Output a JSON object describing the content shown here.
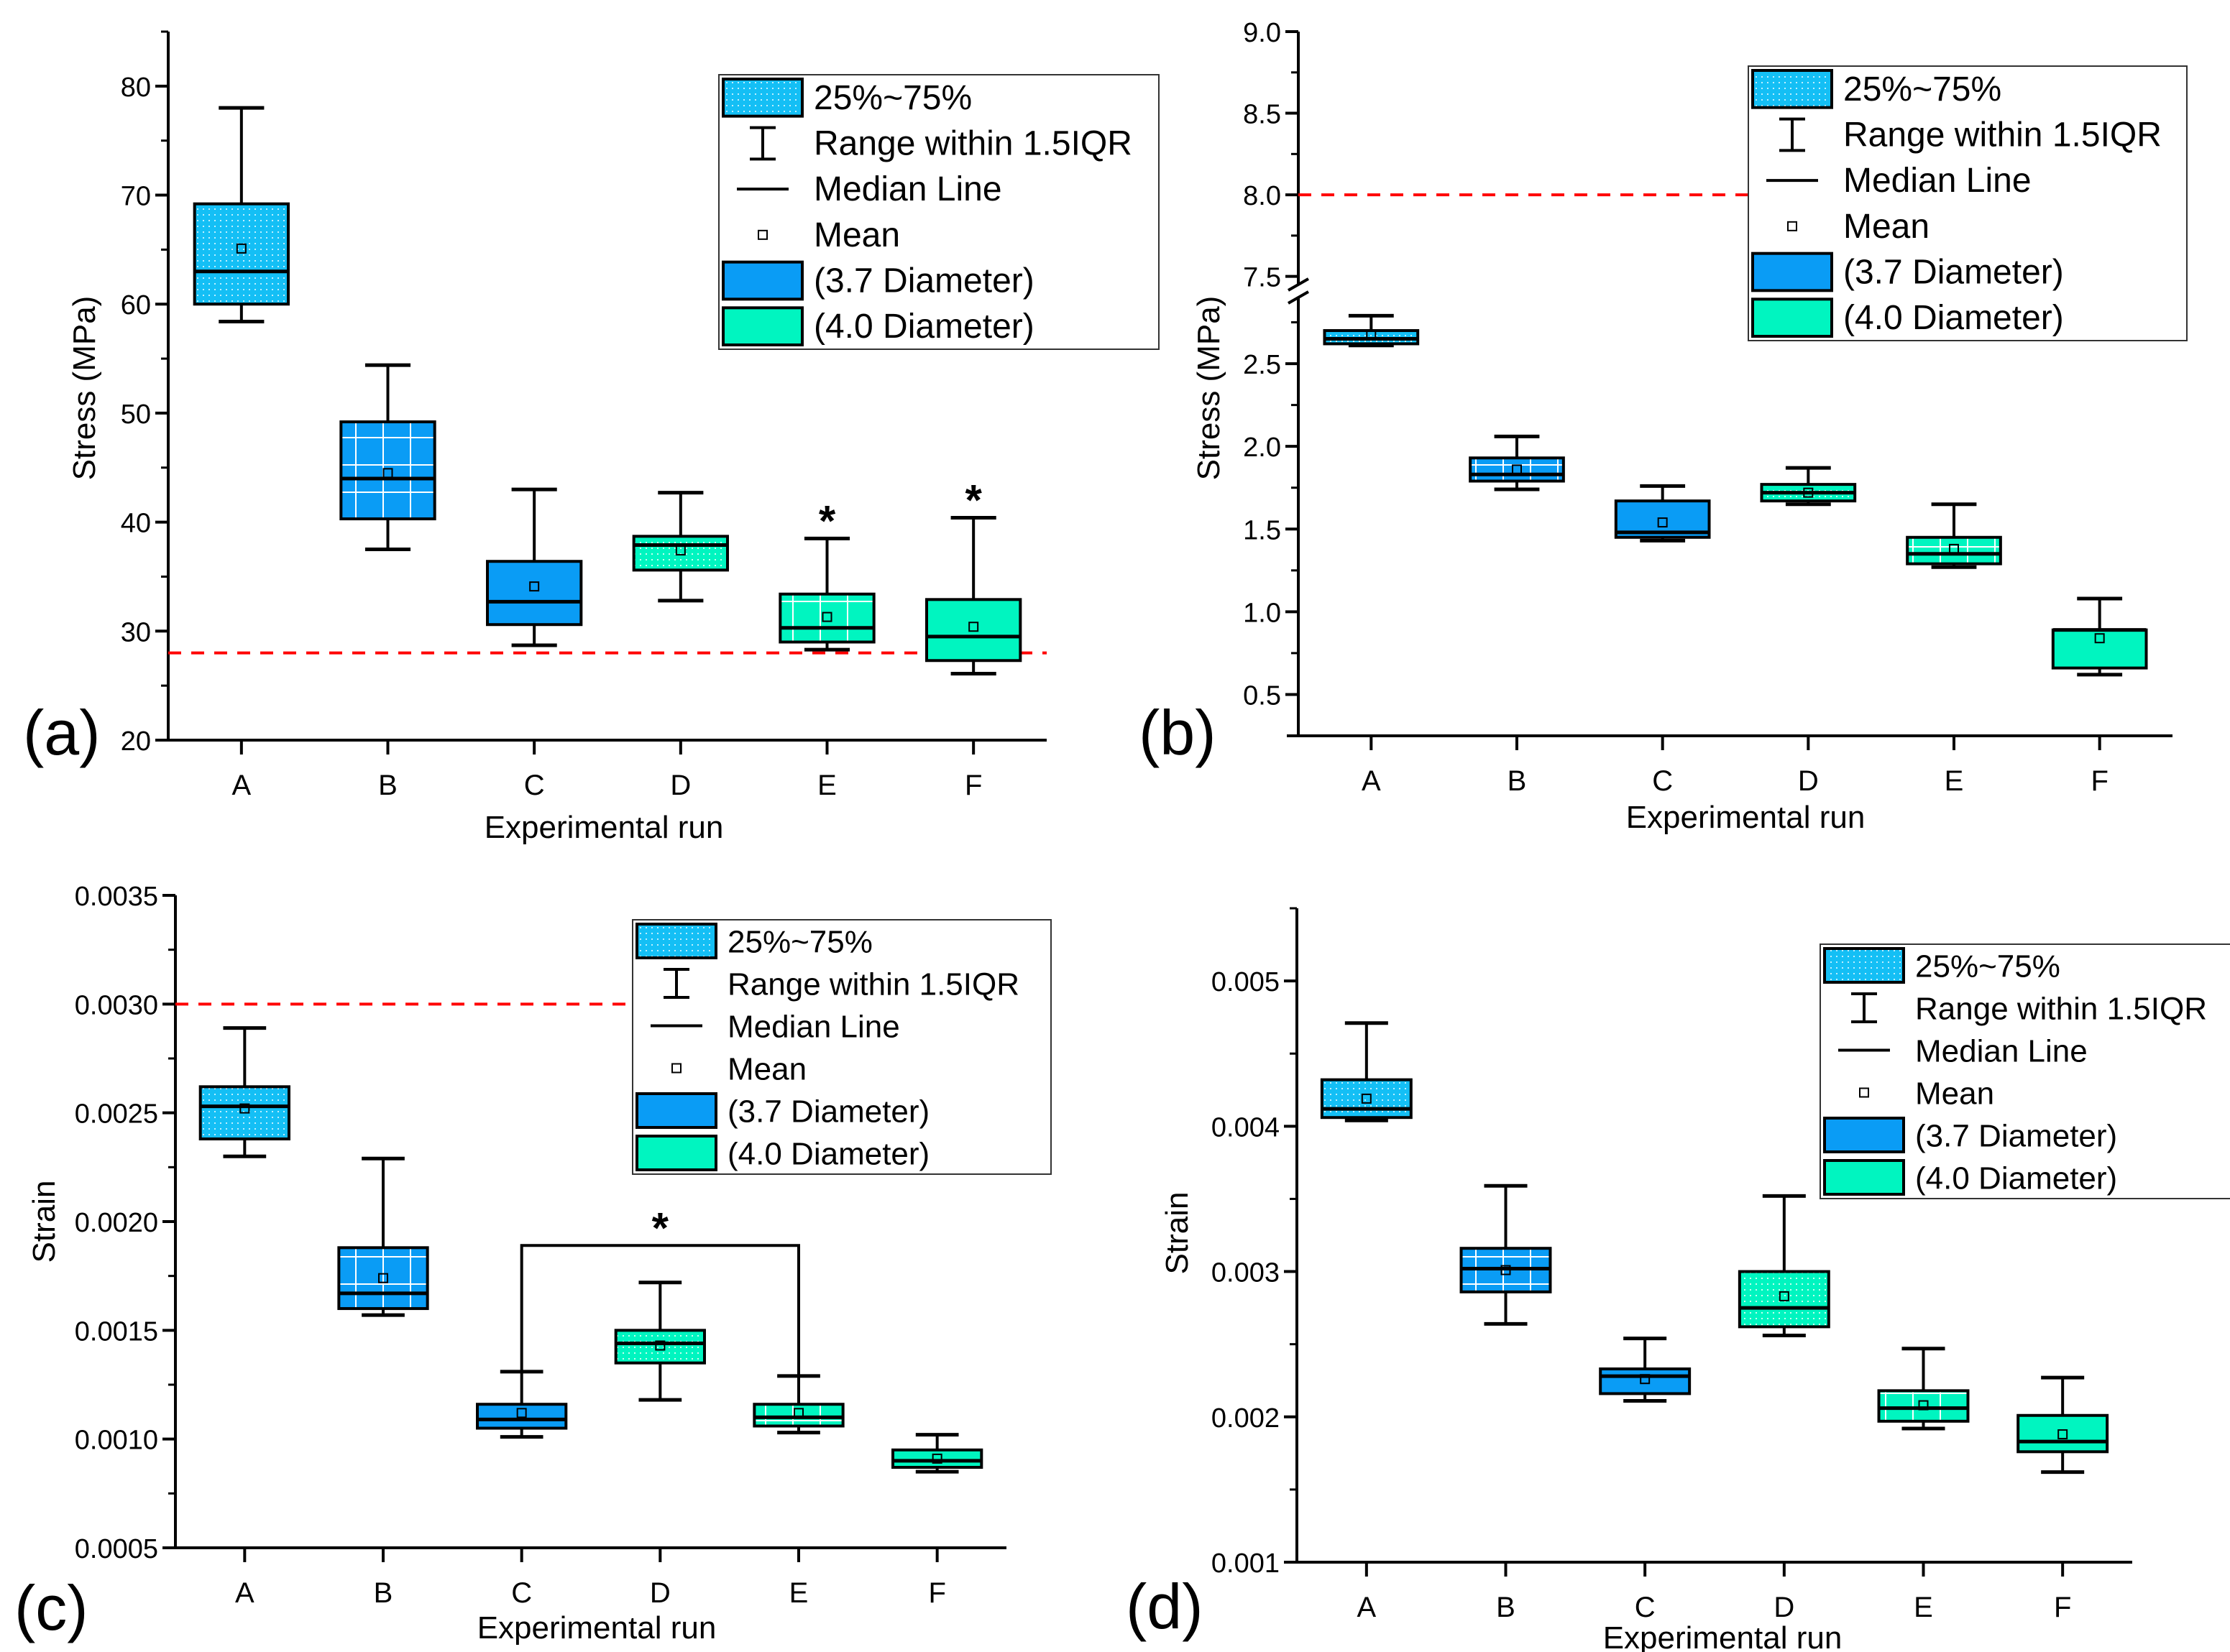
{
  "colors": {
    "light_blue": "#14bff5",
    "blue": "#0a9cf5",
    "teal": "#00f5c0",
    "reference_line": "#ff0000"
  },
  "legend": [
    "25%~75%",
    "Range within 1.5IQR",
    "Median Line",
    "Mean",
    "(3.7 Diameter)",
    "(4.0 Diameter)"
  ],
  "chart_data": [
    {
      "type": "box",
      "panel_label": "(a)",
      "xlabel": "Experimental run",
      "ylabel": "Stress (MPa)",
      "ylim": [
        20,
        85
      ],
      "yticks": [
        20,
        30,
        40,
        50,
        60,
        70,
        80
      ],
      "ytick_labels": [
        "20",
        "30",
        "40",
        "50",
        "60",
        "70",
        "80"
      ],
      "minor_step": 5,
      "categories": [
        "A",
        "B",
        "C",
        "D",
        "E",
        "F"
      ],
      "styles": [
        "dots-blue",
        "grid-blue",
        "solid-blue",
        "dots-teal",
        "grid-teal",
        "solid-teal"
      ],
      "boxes": [
        {
          "low": 58.4,
          "q1": 60.0,
          "median": 63.0,
          "q3": 69.2,
          "high": 78.0,
          "mean": 65.1
        },
        {
          "low": 37.5,
          "q1": 40.3,
          "median": 44.0,
          "q3": 49.2,
          "high": 54.4,
          "mean": 44.5
        },
        {
          "low": 28.7,
          "q1": 30.6,
          "median": 32.7,
          "q3": 36.4,
          "high": 43.0,
          "mean": 34.1
        },
        {
          "low": 32.8,
          "q1": 35.6,
          "median": 37.9,
          "q3": 38.7,
          "high": 42.7,
          "mean": 37.4
        },
        {
          "low": 28.3,
          "q1": 29.0,
          "median": 30.3,
          "q3": 33.4,
          "high": 38.5,
          "mean": 31.3
        },
        {
          "low": 26.1,
          "q1": 27.3,
          "median": 29.5,
          "q3": 32.9,
          "high": 40.4,
          "mean": 30.4
        }
      ],
      "reference_line": 28,
      "significance": {
        "marker": "*",
        "categories": [
          "E",
          "F"
        ]
      }
    },
    {
      "type": "box",
      "panel_label": "(b)",
      "xlabel": "Experimental run",
      "ylabel": "Stress (MPa)",
      "ylim": [
        0.25,
        9.0
      ],
      "axis_break": [
        2.9,
        7.45
      ],
      "yticks": [
        0.5,
        1.0,
        1.5,
        2.0,
        2.5,
        7.5,
        8.0,
        8.5,
        9.0
      ],
      "ytick_labels": [
        "0.5",
        "1.0",
        "1.5",
        "2.0",
        "2.5",
        "7.5",
        "8.0",
        "8.5",
        "9.0"
      ],
      "minor_step": 0.25,
      "categories": [
        "A",
        "B",
        "C",
        "D",
        "E",
        "F"
      ],
      "styles": [
        "dots-blue",
        "grid-blue",
        "solid-blue",
        "dots-teal",
        "grid-teal",
        "solid-teal"
      ],
      "boxes": [
        {
          "low": 2.61,
          "q1": 2.62,
          "median": 2.65,
          "q3": 2.7,
          "high": 2.79,
          "mean": 2.67
        },
        {
          "low": 1.74,
          "q1": 1.79,
          "median": 1.83,
          "q3": 1.93,
          "high": 2.06,
          "mean": 1.86
        },
        {
          "low": 1.43,
          "q1": 1.45,
          "median": 1.48,
          "q3": 1.67,
          "high": 1.76,
          "mean": 1.54
        },
        {
          "low": 1.65,
          "q1": 1.67,
          "median": 1.72,
          "q3": 1.77,
          "high": 1.87,
          "mean": 1.72
        },
        {
          "low": 1.27,
          "q1": 1.29,
          "median": 1.35,
          "q3": 1.45,
          "high": 1.65,
          "mean": 1.38
        },
        {
          "low": 0.62,
          "q1": 0.66,
          "median": 0.89,
          "q3": 0.89,
          "high": 1.08,
          "mean": 0.84
        }
      ],
      "reference_line": 8.0
    },
    {
      "type": "box",
      "panel_label": "(c)",
      "xlabel": "Experimental run",
      "ylabel": "Strain",
      "ylim": [
        0.0005,
        0.0035
      ],
      "yticks": [
        0.0005,
        0.001,
        0.0015,
        0.002,
        0.0025,
        0.003,
        0.0035
      ],
      "ytick_labels": [
        "0.0005",
        "0.0010",
        "0.0015",
        "0.0020",
        "0.0025",
        "0.0030",
        "0.0035"
      ],
      "minor_step": 0.00025,
      "categories": [
        "A",
        "B",
        "C",
        "D",
        "E",
        "F"
      ],
      "styles": [
        "dots-blue",
        "grid-blue",
        "solid-blue",
        "dots-teal",
        "grid-teal",
        "solid-teal"
      ],
      "boxes": [
        {
          "low": 0.0023,
          "q1": 0.00238,
          "median": 0.00253,
          "q3": 0.00262,
          "high": 0.00289,
          "mean": 0.00252
        },
        {
          "low": 0.00157,
          "q1": 0.0016,
          "median": 0.00167,
          "q3": 0.00188,
          "high": 0.00229,
          "mean": 0.00174
        },
        {
          "low": 0.00101,
          "q1": 0.00105,
          "median": 0.00109,
          "q3": 0.00116,
          "high": 0.00131,
          "mean": 0.00112
        },
        {
          "low": 0.00118,
          "q1": 0.00135,
          "median": 0.00144,
          "q3": 0.0015,
          "high": 0.00172,
          "mean": 0.00143
        },
        {
          "low": 0.00103,
          "q1": 0.00106,
          "median": 0.0011,
          "q3": 0.00116,
          "high": 0.00129,
          "mean": 0.00112
        },
        {
          "low": 0.00085,
          "q1": 0.00087,
          "median": 0.0009,
          "q3": 0.00095,
          "high": 0.00102,
          "mean": 0.00091
        }
      ],
      "reference_line": 0.003,
      "bracket": {
        "marker": "*",
        "from": "C",
        "to": "E",
        "level": 0.00189
      }
    },
    {
      "type": "box",
      "panel_label": "(d)",
      "xlabel": "Experimental run",
      "ylabel": "Strain",
      "ylim": [
        0.001,
        0.0055
      ],
      "yticks": [
        0.001,
        0.002,
        0.003,
        0.004,
        0.005
      ],
      "ytick_labels": [
        "0.001",
        "0.002",
        "0.003",
        "0.004",
        "0.005"
      ],
      "minor_step": 0.0005,
      "categories": [
        "A",
        "B",
        "C",
        "D",
        "E",
        "F"
      ],
      "styles": [
        "dots-blue",
        "grid-blue",
        "solid-blue",
        "dots-teal",
        "grid-teal",
        "solid-teal"
      ],
      "boxes": [
        {
          "low": 0.00404,
          "q1": 0.00406,
          "median": 0.00412,
          "q3": 0.00432,
          "high": 0.00471,
          "mean": 0.00419
        },
        {
          "low": 0.00264,
          "q1": 0.00286,
          "median": 0.00302,
          "q3": 0.00316,
          "high": 0.00359,
          "mean": 0.00301
        },
        {
          "low": 0.00211,
          "q1": 0.00216,
          "median": 0.00228,
          "q3": 0.00233,
          "high": 0.00254,
          "mean": 0.00226
        },
        {
          "low": 0.00256,
          "q1": 0.00262,
          "median": 0.00275,
          "q3": 0.003,
          "high": 0.00352,
          "mean": 0.00283
        },
        {
          "low": 0.00192,
          "q1": 0.00197,
          "median": 0.00206,
          "q3": 0.00218,
          "high": 0.00247,
          "mean": 0.00208
        },
        {
          "low": 0.00162,
          "q1": 0.00176,
          "median": 0.00183,
          "q3": 0.00201,
          "high": 0.00227,
          "mean": 0.00188
        }
      ]
    }
  ]
}
